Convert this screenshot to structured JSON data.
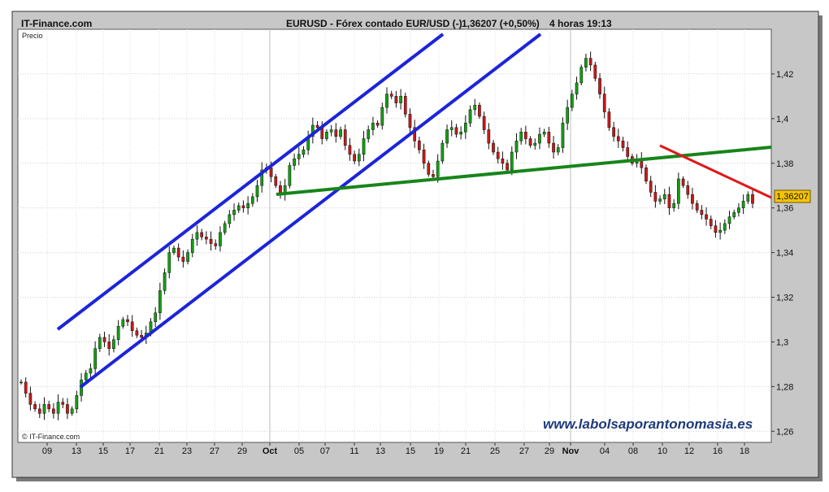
{
  "header": {
    "site": "IT-Finance.com",
    "symbol": "EURUSD - Fórex contado EUR/USD (-)",
    "last": "1,36207 (+0,50%)",
    "interval": "4 horas",
    "time": "19:13"
  },
  "corner_label": "Precio",
  "copyright": "© IT-Finance.com",
  "watermark": "www.labolsaporantonomasia.es",
  "price_tag": "1,36207",
  "colors": {
    "channel": "#1c25d8",
    "support": "#17851a",
    "resistance": "#e01717",
    "price_tag_bg": "#f5c400",
    "watermark": "#1f3a7a"
  },
  "chart_data": {
    "type": "candlestick",
    "ylim": [
      1.255,
      1.44
    ],
    "y_ticks": [
      {
        "label": "1,26",
        "value": 1.26
      },
      {
        "label": "1,28",
        "value": 1.28
      },
      {
        "label": "1,3",
        "value": 1.3
      },
      {
        "label": "1,32",
        "value": 1.32
      },
      {
        "label": "1,34",
        "value": 1.34
      },
      {
        "label": "1,36",
        "value": 1.36
      },
      {
        "label": "1,38",
        "value": 1.38
      },
      {
        "label": "1,4",
        "value": 1.4
      },
      {
        "label": "1,42",
        "value": 1.42
      }
    ],
    "x_ticks": [
      "09",
      "13",
      "15",
      "17",
      "21",
      "23",
      "27",
      "29",
      "Oct",
      "05",
      "07",
      "11",
      "13",
      "15",
      "19",
      "21",
      "25",
      "27",
      "29",
      "Nov",
      "04",
      "08",
      "10",
      "12",
      "16",
      "18"
    ],
    "month_ticks": [
      "Oct",
      "Nov"
    ],
    "last_value": 1.36207,
    "closes": [
      1.282,
      1.277,
      1.272,
      1.27,
      1.268,
      1.272,
      1.27,
      1.268,
      1.273,
      1.272,
      1.268,
      1.27,
      1.276,
      1.283,
      1.286,
      1.288,
      1.297,
      1.302,
      1.3,
      1.297,
      1.301,
      1.307,
      1.31,
      1.309,
      1.305,
      1.303,
      1.302,
      1.304,
      1.309,
      1.313,
      1.323,
      1.331,
      1.34,
      1.342,
      1.338,
      1.336,
      1.34,
      1.346,
      1.349,
      1.347,
      1.346,
      1.344,
      1.343,
      1.349,
      1.353,
      1.357,
      1.359,
      1.361,
      1.36,
      1.362,
      1.365,
      1.37,
      1.377,
      1.378,
      1.374,
      1.37,
      1.366,
      1.37,
      1.379,
      1.382,
      1.384,
      1.386,
      1.392,
      1.397,
      1.396,
      1.391,
      1.394,
      1.395,
      1.392,
      1.395,
      1.388,
      1.384,
      1.381,
      1.384,
      1.391,
      1.395,
      1.398,
      1.397,
      1.405,
      1.411,
      1.41,
      1.407,
      1.41,
      1.402,
      1.396,
      1.39,
      1.386,
      1.38,
      1.375,
      1.374,
      1.381,
      1.389,
      1.395,
      1.396,
      1.393,
      1.394,
      1.398,
      1.404,
      1.406,
      1.401,
      1.395,
      1.389,
      1.385,
      1.382,
      1.38,
      1.377,
      1.385,
      1.39,
      1.394,
      1.391,
      1.388,
      1.389,
      1.393,
      1.394,
      1.389,
      1.385,
      1.387,
      1.398,
      1.405,
      1.411,
      1.416,
      1.423,
      1.427,
      1.424,
      1.418,
      1.411,
      1.403,
      1.396,
      1.392,
      1.39,
      1.387,
      1.383,
      1.38,
      1.382,
      1.378,
      1.372,
      1.367,
      1.363,
      1.364,
      1.366,
      1.36,
      1.362,
      1.373,
      1.37,
      1.366,
      1.362,
      1.359,
      1.357,
      1.355,
      1.352,
      1.349,
      1.35,
      1.353,
      1.356,
      1.358,
      1.36,
      1.363,
      1.366,
      1.362
    ]
  }
}
